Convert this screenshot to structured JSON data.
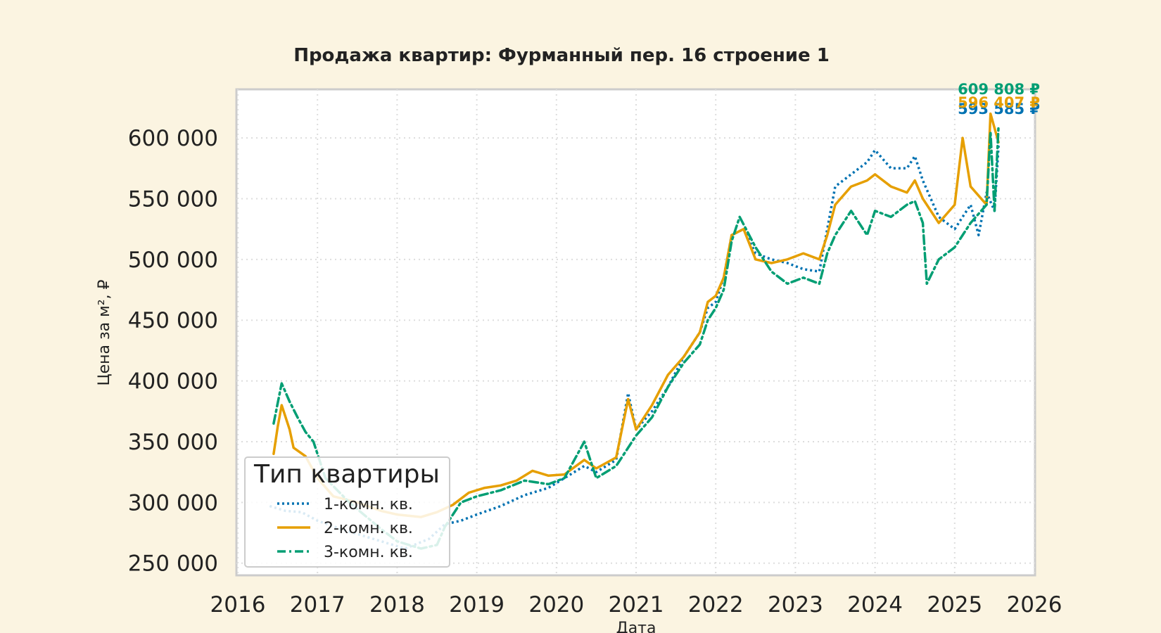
{
  "chart_data": {
    "type": "line",
    "title": "Продажа квартир: Фурманный пер. 16 строение 1",
    "xlabel": "Дата",
    "ylabel": "Цена за м², ₽",
    "xlim": [
      2016,
      2026
    ],
    "ylim": [
      240000,
      640000
    ],
    "x_ticks": [
      2016,
      2017,
      2018,
      2019,
      2020,
      2021,
      2022,
      2023,
      2024,
      2025,
      2026
    ],
    "x_tick_labels": [
      "2016",
      "2017",
      "2018",
      "2019",
      "2020",
      "2021",
      "2022",
      "2023",
      "2024",
      "2025",
      "2026"
    ],
    "y_ticks": [
      250000,
      300000,
      350000,
      400000,
      450000,
      500000,
      550000,
      600000
    ],
    "y_tick_labels": [
      "250 000",
      "300 000",
      "350 000",
      "400 000",
      "450 000",
      "500 000",
      "550 000",
      "600 000"
    ],
    "grid": true,
    "legend": {
      "title": "Тип квартиры",
      "placement": "lower-left"
    },
    "series": [
      {
        "name": "1-комн. кв.",
        "color": "#0072b2",
        "style": "dotted",
        "end_label": "593 585 ₽",
        "points": [
          [
            2016.4,
            297000
          ],
          [
            2016.6,
            293000
          ],
          [
            2016.8,
            292000
          ],
          [
            2017.0,
            285000
          ],
          [
            2017.3,
            278000
          ],
          [
            2017.6,
            272000
          ],
          [
            2017.9,
            266000
          ],
          [
            2018.1,
            262000
          ],
          [
            2018.4,
            270000
          ],
          [
            2018.6,
            282000
          ],
          [
            2018.8,
            285000
          ],
          [
            2019.0,
            290000
          ],
          [
            2019.3,
            297000
          ],
          [
            2019.6,
            306000
          ],
          [
            2019.9,
            312000
          ],
          [
            2020.1,
            320000
          ],
          [
            2020.35,
            330000
          ],
          [
            2020.5,
            325000
          ],
          [
            2020.75,
            335000
          ],
          [
            2020.9,
            390000
          ],
          [
            2021.0,
            360000
          ],
          [
            2021.2,
            375000
          ],
          [
            2021.4,
            395000
          ],
          [
            2021.6,
            420000
          ],
          [
            2021.8,
            440000
          ],
          [
            2021.9,
            460000
          ],
          [
            2022.0,
            465000
          ],
          [
            2022.1,
            485000
          ],
          [
            2022.2,
            520000
          ],
          [
            2022.35,
            525000
          ],
          [
            2022.5,
            505000
          ],
          [
            2022.7,
            500000
          ],
          [
            2022.9,
            497000
          ],
          [
            2023.1,
            492000
          ],
          [
            2023.3,
            490000
          ],
          [
            2023.4,
            525000
          ],
          [
            2023.5,
            560000
          ],
          [
            2023.7,
            570000
          ],
          [
            2023.9,
            580000
          ],
          [
            2024.0,
            590000
          ],
          [
            2024.2,
            575000
          ],
          [
            2024.4,
            575000
          ],
          [
            2024.5,
            585000
          ],
          [
            2024.6,
            565000
          ],
          [
            2024.8,
            535000
          ],
          [
            2025.0,
            525000
          ],
          [
            2025.2,
            545000
          ],
          [
            2025.3,
            520000
          ],
          [
            2025.4,
            555000
          ],
          [
            2025.5,
            540000
          ],
          [
            2025.55,
            593585
          ]
        ]
      },
      {
        "name": "2-комн. кв.",
        "color": "#e69f00",
        "style": "solid",
        "end_label": "596 407 ₽",
        "points": [
          [
            2016.45,
            340000
          ],
          [
            2016.5,
            362000
          ],
          [
            2016.55,
            380000
          ],
          [
            2016.65,
            360000
          ],
          [
            2016.7,
            345000
          ],
          [
            2016.85,
            338000
          ],
          [
            2017.0,
            320000
          ],
          [
            2017.2,
            305000
          ],
          [
            2017.5,
            300000
          ],
          [
            2017.8,
            293000
          ],
          [
            2018.0,
            290000
          ],
          [
            2018.3,
            288000
          ],
          [
            2018.5,
            292000
          ],
          [
            2018.7,
            298000
          ],
          [
            2018.9,
            308000
          ],
          [
            2019.1,
            312000
          ],
          [
            2019.3,
            314000
          ],
          [
            2019.5,
            318000
          ],
          [
            2019.7,
            326000
          ],
          [
            2019.9,
            322000
          ],
          [
            2020.1,
            323000
          ],
          [
            2020.35,
            335000
          ],
          [
            2020.5,
            328000
          ],
          [
            2020.75,
            337000
          ],
          [
            2020.9,
            385000
          ],
          [
            2021.0,
            360000
          ],
          [
            2021.2,
            380000
          ],
          [
            2021.4,
            405000
          ],
          [
            2021.6,
            420000
          ],
          [
            2021.8,
            440000
          ],
          [
            2021.9,
            465000
          ],
          [
            2022.0,
            470000
          ],
          [
            2022.1,
            485000
          ],
          [
            2022.2,
            520000
          ],
          [
            2022.35,
            525000
          ],
          [
            2022.5,
            500000
          ],
          [
            2022.7,
            497000
          ],
          [
            2022.9,
            500000
          ],
          [
            2023.1,
            505000
          ],
          [
            2023.3,
            500000
          ],
          [
            2023.4,
            520000
          ],
          [
            2023.5,
            545000
          ],
          [
            2023.7,
            560000
          ],
          [
            2023.9,
            565000
          ],
          [
            2024.0,
            570000
          ],
          [
            2024.2,
            560000
          ],
          [
            2024.4,
            555000
          ],
          [
            2024.5,
            565000
          ],
          [
            2024.6,
            550000
          ],
          [
            2024.8,
            530000
          ],
          [
            2025.0,
            545000
          ],
          [
            2025.1,
            600000
          ],
          [
            2025.2,
            560000
          ],
          [
            2025.4,
            545000
          ],
          [
            2025.45,
            620000
          ],
          [
            2025.55,
            596407
          ]
        ]
      },
      {
        "name": "3-комн. кв.",
        "color": "#009e73",
        "style": "dashdot",
        "end_label": "609 808 ₽",
        "points": [
          [
            2016.45,
            365000
          ],
          [
            2016.55,
            398000
          ],
          [
            2016.65,
            383000
          ],
          [
            2016.75,
            370000
          ],
          [
            2016.85,
            358000
          ],
          [
            2016.95,
            350000
          ],
          [
            2017.1,
            320000
          ],
          [
            2017.4,
            300000
          ],
          [
            2017.8,
            278000
          ],
          [
            2018.0,
            268000
          ],
          [
            2018.3,
            262000
          ],
          [
            2018.5,
            265000
          ],
          [
            2018.6,
            280000
          ],
          [
            2018.8,
            300000
          ],
          [
            2019.0,
            305000
          ],
          [
            2019.3,
            310000
          ],
          [
            2019.6,
            318000
          ],
          [
            2019.9,
            315000
          ],
          [
            2020.1,
            320000
          ],
          [
            2020.35,
            350000
          ],
          [
            2020.5,
            320000
          ],
          [
            2020.75,
            330000
          ],
          [
            2020.9,
            345000
          ],
          [
            2021.0,
            355000
          ],
          [
            2021.2,
            370000
          ],
          [
            2021.4,
            395000
          ],
          [
            2021.6,
            415000
          ],
          [
            2021.8,
            430000
          ],
          [
            2021.9,
            450000
          ],
          [
            2022.0,
            460000
          ],
          [
            2022.1,
            475000
          ],
          [
            2022.2,
            515000
          ],
          [
            2022.3,
            535000
          ],
          [
            2022.5,
            510000
          ],
          [
            2022.7,
            490000
          ],
          [
            2022.9,
            480000
          ],
          [
            2023.1,
            485000
          ],
          [
            2023.3,
            480000
          ],
          [
            2023.4,
            505000
          ],
          [
            2023.5,
            520000
          ],
          [
            2023.7,
            540000
          ],
          [
            2023.9,
            520000
          ],
          [
            2024.0,
            540000
          ],
          [
            2024.2,
            535000
          ],
          [
            2024.4,
            545000
          ],
          [
            2024.5,
            548000
          ],
          [
            2024.6,
            530000
          ],
          [
            2024.65,
            480000
          ],
          [
            2024.8,
            500000
          ],
          [
            2025.0,
            510000
          ],
          [
            2025.2,
            530000
          ],
          [
            2025.4,
            545000
          ],
          [
            2025.45,
            605000
          ],
          [
            2025.5,
            540000
          ],
          [
            2025.55,
            609808
          ]
        ]
      }
    ]
  }
}
